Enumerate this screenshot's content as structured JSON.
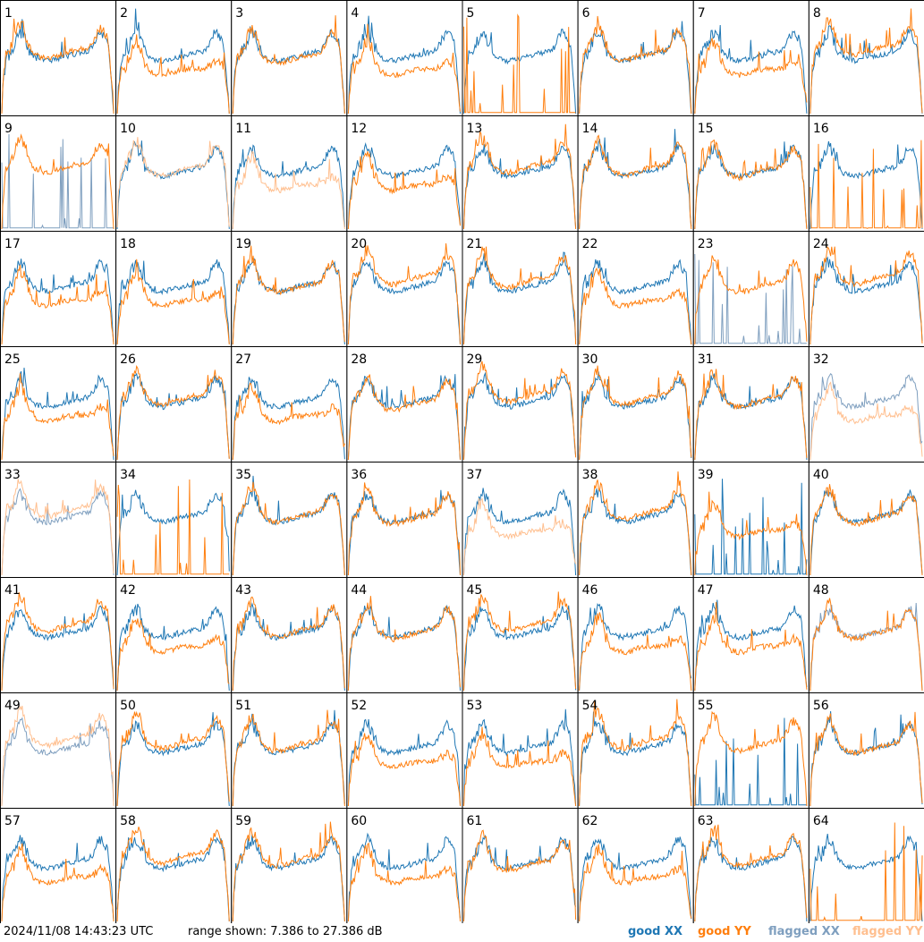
{
  "chart_data": {
    "type": "line",
    "panels": [
      "1",
      "2",
      "3",
      "4",
      "5",
      "6",
      "7",
      "8",
      "9",
      "10",
      "11",
      "12",
      "13",
      "14",
      "15",
      "16",
      "17",
      "18",
      "19",
      "20",
      "21",
      "22",
      "23",
      "24",
      "25",
      "26",
      "27",
      "28",
      "29",
      "30",
      "31",
      "32",
      "33",
      "34",
      "35",
      "36",
      "37",
      "38",
      "39",
      "40",
      "41",
      "42",
      "43",
      "44",
      "45",
      "46",
      "47",
      "48",
      "49",
      "50",
      "51",
      "52",
      "53",
      "54",
      "55",
      "56",
      "57",
      "58",
      "59",
      "60",
      "61",
      "62",
      "63",
      "64"
    ],
    "range_db": [
      7.386,
      27.386
    ],
    "series": [
      {
        "name": "good XX",
        "color": "#1f77b4"
      },
      {
        "name": "good YY",
        "color": "#ff7f0e"
      },
      {
        "name": "flagged XX",
        "color": "#7f9fbf"
      },
      {
        "name": "flagged YY",
        "color": "#ffbf8f"
      }
    ],
    "panel_status": {
      "9": "xx_flagged_spikes",
      "10": "yy_flagged",
      "11": "yy_flagged",
      "16": "yy_spike",
      "23": "xx_flagged_spikes",
      "32": "all_flagged",
      "33": "all_flagged",
      "34": "yy_spikes",
      "37": "yy_flagged",
      "39": "xx_spike",
      "48": "xx_flagged",
      "49": "all_flagged",
      "55": "xx_spikes",
      "64": "yy_spike",
      "5": "yy_low"
    }
  },
  "footer": {
    "timestamp": "2024/11/08 14:43:23 UTC",
    "range_text": "range shown: 7.386 to 27.386 dB",
    "legend": [
      "good XX",
      "good YY",
      "flagged XX",
      "flagged YY"
    ]
  }
}
